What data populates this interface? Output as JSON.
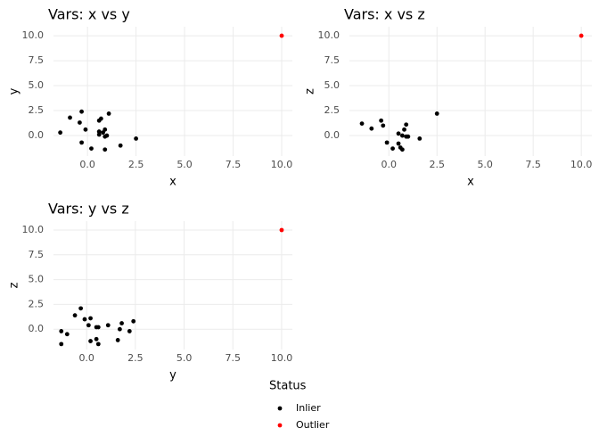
{
  "chart_data": [
    {
      "type": "scatter",
      "title": "Vars: x vs y",
      "x_label": "x",
      "y_label": "y",
      "legend_title": "Status",
      "xlim": [
        -1.75,
        10.55
      ],
      "ylim": [
        -2.05,
        10.9
      ],
      "xticks": [
        {
          "value": 0,
          "label": "0.0"
        },
        2.5,
        {
          "value": 5,
          "label": "5.0"
        },
        7.5,
        {
          "value": 10,
          "label": "10.0"
        }
      ],
      "yticks": [
        {
          "value": 0,
          "label": "0.0"
        },
        2.5,
        {
          "value": 5,
          "label": "5.0"
        },
        7.5,
        {
          "value": 10,
          "label": "10.0"
        }
      ],
      "grid": true,
      "series": [
        {
          "name": "Inlier",
          "color": "#000000",
          "x": [
            -1.4,
            -0.9,
            -0.3,
            -0.4,
            -0.3,
            -0.1,
            0.2,
            0.6,
            0.6,
            0.7,
            0.6,
            0.8,
            0.9,
            0.9,
            0.9,
            1.0,
            1.1,
            1.7,
            2.5
          ],
          "values": [
            0.3,
            1.8,
            2.4,
            1.3,
            -0.7,
            0.6,
            -1.3,
            0.4,
            1.5,
            1.7,
            0.1,
            0.3,
            0.6,
            -0.1,
            -1.4,
            0.0,
            2.2,
            -1.0,
            -0.3
          ]
        },
        {
          "name": "Outlier",
          "color": "#ff0000",
          "x": [
            10
          ],
          "values": [
            10
          ]
        }
      ]
    },
    {
      "type": "scatter",
      "title": "Vars: x vs z",
      "x_label": "x",
      "y_label": "z",
      "xlim": [
        -2.05,
        10.55
      ],
      "ylim": [
        -2.05,
        10.9
      ],
      "xticks": [
        {
          "value": 0,
          "label": "0.0"
        },
        2.5,
        {
          "value": 5,
          "label": "5.0"
        },
        7.5,
        {
          "value": 10,
          "label": "10.0"
        }
      ],
      "yticks": [
        {
          "value": 0,
          "label": "0.0"
        },
        2.5,
        {
          "value": 5,
          "label": "5.0"
        },
        7.5,
        {
          "value": 10,
          "label": "10.0"
        }
      ],
      "grid": true,
      "series": [
        {
          "name": "Inlier",
          "color": "#000000",
          "x": [
            -1.4,
            -0.9,
            -0.4,
            -0.3,
            -0.1,
            0.2,
            0.5,
            0.5,
            0.6,
            0.7,
            0.7,
            0.8,
            0.9,
            0.9,
            1.0,
            1.6,
            2.5
          ],
          "values": [
            1.2,
            0.7,
            1.5,
            1.0,
            -0.7,
            -1.3,
            0.2,
            -0.8,
            -1.2,
            -1.4,
            0.0,
            0.6,
            1.1,
            -0.1,
            -0.1,
            -0.3,
            2.2
          ]
        },
        {
          "name": "Outlier",
          "color": "#ff0000",
          "x": [
            10
          ],
          "values": [
            10
          ]
        }
      ]
    },
    {
      "type": "scatter",
      "title": "Vars: y vs z",
      "x_label": "y",
      "y_label": "z",
      "xlim": [
        -1.7,
        10.55
      ],
      "ylim": [
        -2.05,
        10.9
      ],
      "xticks": [
        {
          "value": 0,
          "label": "0.0"
        },
        2.5,
        {
          "value": 5,
          "label": "5.0"
        },
        7.5,
        {
          "value": 10,
          "label": "10.0"
        }
      ],
      "yticks": [
        {
          "value": 0,
          "label": "0.0"
        },
        2.5,
        {
          "value": 5,
          "label": "5.0"
        },
        7.5,
        {
          "value": 10,
          "label": "10.0"
        }
      ],
      "grid": true,
      "series": [
        {
          "name": "Inlier",
          "color": "#000000",
          "x": [
            -1.3,
            -1.3,
            -1.0,
            -0.6,
            -0.3,
            -0.1,
            0.1,
            0.2,
            0.2,
            0.5,
            0.5,
            0.6,
            0.6,
            1.1,
            1.6,
            1.7,
            1.8,
            2.2,
            2.4
          ],
          "values": [
            -0.2,
            -1.5,
            -0.5,
            1.4,
            2.1,
            1.0,
            0.4,
            1.1,
            -1.2,
            -1.0,
            0.2,
            0.2,
            -1.5,
            0.4,
            -1.1,
            0.0,
            0.6,
            -0.2,
            0.8
          ]
        },
        {
          "name": "Outlier",
          "color": "#ff0000",
          "x": [
            10
          ],
          "values": [
            10
          ]
        }
      ]
    }
  ]
}
